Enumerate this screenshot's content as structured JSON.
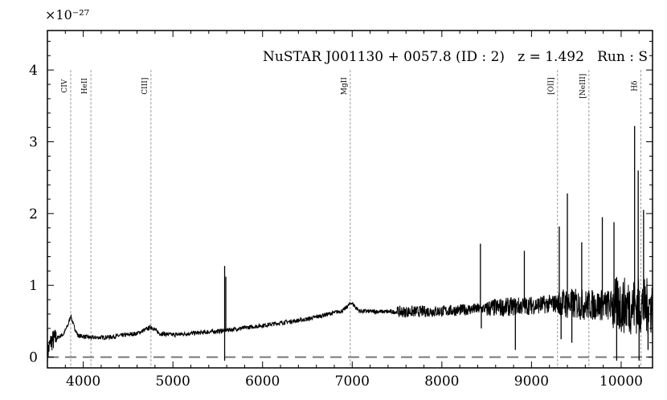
{
  "chart_data": {
    "type": "line",
    "title": "NuSTAR J001130 + 0057.8 (ID : 2)   z = 1.492   Run : S",
    "xlabel": "",
    "ylabel": "",
    "y_scale_label": "×10⁻²⁷",
    "xlim": [
      3600,
      10350
    ],
    "ylim": [
      -0.15,
      4.55
    ],
    "x_ticks": [
      4000,
      5000,
      6000,
      7000,
      8000,
      9000,
      10000
    ],
    "y_ticks": [
      0,
      1,
      2,
      3,
      4
    ],
    "grid": false,
    "zero_line": {
      "y": 0,
      "style": "dashed",
      "color": "#777777"
    },
    "series": [
      {
        "color": "#000000",
        "continuum": [
          [
            3600,
            0.05
          ],
          [
            3640,
            0.22
          ],
          [
            3700,
            0.26
          ],
          [
            3780,
            0.32
          ],
          [
            3830,
            0.45
          ],
          [
            3860,
            0.58
          ],
          [
            3890,
            0.45
          ],
          [
            3940,
            0.3
          ],
          [
            4100,
            0.27
          ],
          [
            4300,
            0.28
          ],
          [
            4600,
            0.33
          ],
          [
            4760,
            0.42
          ],
          [
            4850,
            0.33
          ],
          [
            5000,
            0.31
          ],
          [
            5500,
            0.36
          ],
          [
            6000,
            0.44
          ],
          [
            6500,
            0.53
          ],
          [
            6900,
            0.65
          ],
          [
            6990,
            0.76
          ],
          [
            7080,
            0.64
          ],
          [
            7500,
            0.63
          ],
          [
            8000,
            0.64
          ],
          [
            8500,
            0.68
          ],
          [
            9000,
            0.72
          ],
          [
            9300,
            0.75
          ],
          [
            9600,
            0.73
          ],
          [
            10000,
            0.72
          ],
          [
            10350,
            0.7
          ]
        ],
        "spikes": [
          [
            5577,
            1.27
          ],
          [
            5577,
            -0.05
          ],
          [
            5590,
            1.12
          ],
          [
            8430,
            1.58
          ],
          [
            8440,
            0.4
          ],
          [
            8820,
            0.1
          ],
          [
            8920,
            1.48
          ],
          [
            9310,
            1.82
          ],
          [
            9330,
            0.25
          ],
          [
            9400,
            2.28
          ],
          [
            9450,
            0.2
          ],
          [
            9560,
            1.6
          ],
          [
            9790,
            1.95
          ],
          [
            9920,
            1.88
          ],
          [
            9950,
            -0.05
          ],
          [
            10150,
            3.22
          ],
          [
            10190,
            2.6
          ],
          [
            10200,
            -0.05
          ],
          [
            10250,
            2.05
          ],
          [
            10300,
            0.1
          ]
        ]
      }
    ],
    "annotations": [
      {
        "label": "CIV",
        "x": 3860
      },
      {
        "label": "HeII",
        "x": 4085
      },
      {
        "label": "CIII]",
        "x": 4755
      },
      {
        "label": "MgII",
        "x": 6978
      },
      {
        "label": "[OII]",
        "x": 9290
      },
      {
        "label": "[NeIII]",
        "x": 9640
      },
      {
        "label": "Hδ",
        "x": 10220
      }
    ]
  }
}
